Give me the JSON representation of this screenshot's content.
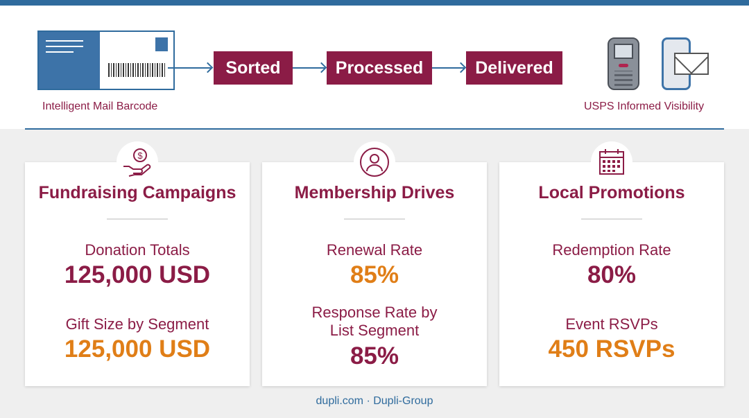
{
  "flow": {
    "barcode_caption": "Intelligent Mail Barcode",
    "stages": [
      "Sorted",
      "Processed",
      "Delivered"
    ],
    "visibility_caption": "USPS Informed Visibility"
  },
  "cards": [
    {
      "title": "Fundraising Campaigns",
      "icon": "hand-dollar-icon",
      "metrics": [
        {
          "label": "Donation Totals",
          "value": "125,000 USD",
          "color": "#8b1c46"
        },
        {
          "label": "Gift Size by Segment",
          "value": "125,000 USD",
          "color": "#e07e17"
        }
      ]
    },
    {
      "title": "Membership Drives",
      "icon": "person-icon",
      "metrics": [
        {
          "label": "Renewal Rate",
          "value": "85%",
          "color": "#e07e17"
        },
        {
          "label": "Response Rate by\nList Segment",
          "value": "85%",
          "color": "#8b1c46"
        }
      ]
    },
    {
      "title": "Local Promotions",
      "icon": "calendar-icon",
      "metrics": [
        {
          "label": "Redemption Rate",
          "value": "80%",
          "color": "#8b1c46"
        },
        {
          "label": "Event RSVPs",
          "value": "450 RSVPs",
          "color": "#e07e17"
        }
      ]
    }
  ],
  "footer": "dupli.com · Dupli-Group",
  "colors": {
    "accent": "#8b1c46",
    "highlight": "#e07e17",
    "blue": "#2f6b9d"
  }
}
